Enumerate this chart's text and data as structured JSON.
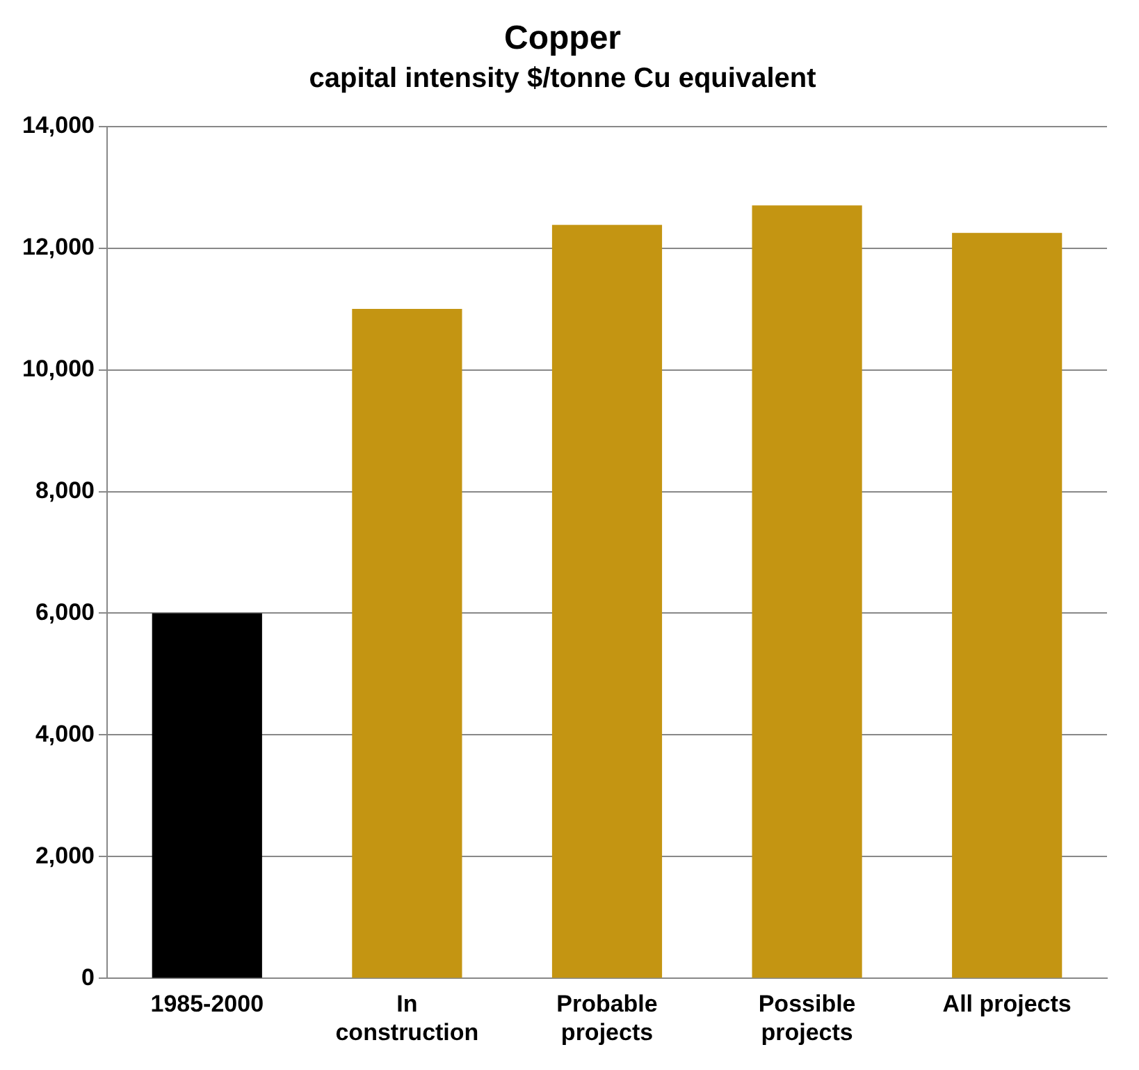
{
  "chart_data": {
    "type": "bar",
    "title": "Copper",
    "subtitle": "capital intensity $/tonne Cu equivalent",
    "categories": [
      "1985-2000",
      "In construction",
      "Probable projects",
      "Possible projects",
      "All projects"
    ],
    "values": [
      6000,
      11000,
      12380,
      12700,
      12250
    ],
    "colors": [
      "#000000",
      "#c49512",
      "#c49512",
      "#c49512",
      "#c49512"
    ],
    "ylim": [
      0,
      14000
    ],
    "yticks": [
      0,
      {
        "value": 2000,
        "label": "2,000"
      },
      {
        "value": 4000,
        "label": "4,000"
      },
      {
        "value": 6000,
        "label": "6,000"
      },
      {
        "value": 8000,
        "label": "8,000"
      },
      {
        "value": 10000,
        "label": "10,000"
      },
      {
        "value": 12000,
        "label": "12,000"
      },
      {
        "value": 14000,
        "label": "14,000"
      }
    ],
    "grid": "y",
    "legend": false
  }
}
